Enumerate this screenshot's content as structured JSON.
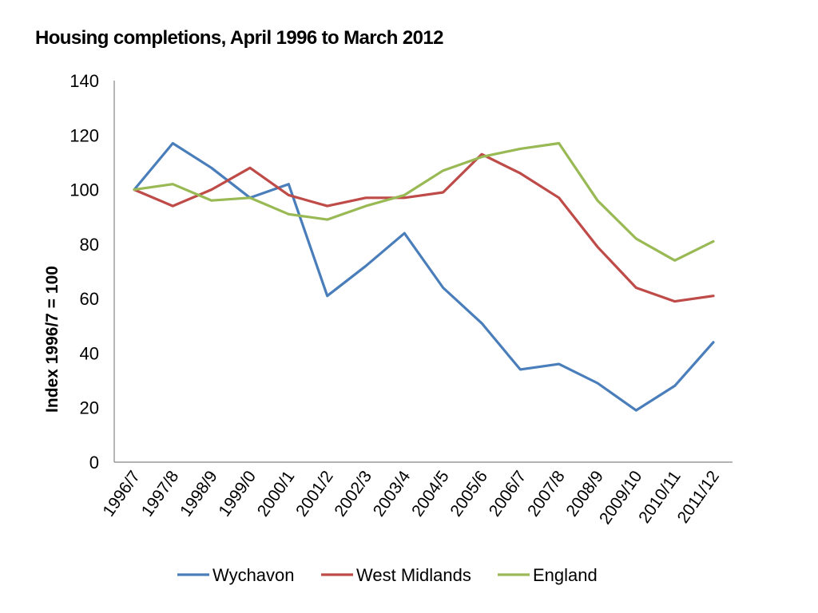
{
  "chart_data": {
    "type": "line",
    "title": "Housing completions, April 1996 to March 2012",
    "xlabel": "",
    "ylabel": "Index 1996/7 = 100",
    "ylim": [
      0,
      140
    ],
    "yticks": [
      0,
      20,
      40,
      60,
      80,
      100,
      120,
      140
    ],
    "categories": [
      "1996/7",
      "1997/8",
      "1998/9",
      "1999/0",
      "2000/1",
      "2001/2",
      "2002/3",
      "2003/4",
      "2004/5",
      "2005/6",
      "2006/7",
      "2007/8",
      "2008/9",
      "2009/10",
      "2010/11",
      "2011/12"
    ],
    "grid": false,
    "legend_position": "bottom",
    "series": [
      {
        "name": "Wychavon",
        "color": "#4a7ebb",
        "values": [
          100,
          117,
          108,
          97,
          102,
          61,
          72,
          84,
          64,
          51,
          34,
          36,
          29,
          19,
          28,
          44
        ]
      },
      {
        "name": "West Midlands",
        "color": "#be4b48",
        "values": [
          100,
          94,
          100,
          108,
          98,
          94,
          97,
          97,
          99,
          113,
          106,
          97,
          79,
          64,
          59,
          61
        ]
      },
      {
        "name": "England",
        "color": "#98b954",
        "values": [
          100,
          102,
          96,
          97,
          91,
          89,
          94,
          98,
          107,
          112,
          115,
          117,
          96,
          82,
          74,
          81
        ]
      }
    ]
  }
}
